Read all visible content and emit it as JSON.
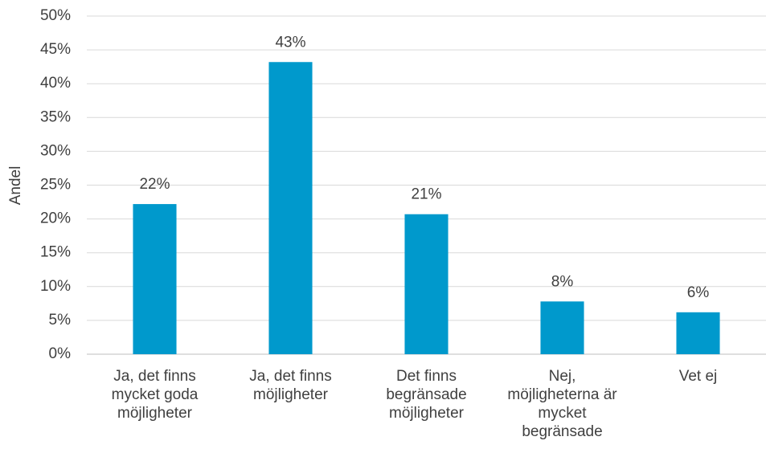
{
  "chart_data": {
    "type": "bar",
    "y_label": "Andel",
    "categories": [
      "Ja, det finns mycket goda möjligheter",
      "Ja, det finns möjligheter",
      "Det finns begränsade möjligheter",
      "Nej, möjligheterna är mycket begränsade",
      "Vet ej"
    ],
    "values": [
      22.2,
      43.2,
      20.7,
      7.8,
      6.2
    ],
    "value_labels": [
      "22%",
      "43%",
      "21%",
      "8%",
      "6%"
    ],
    "color": "#0099cc",
    "ylim": [
      0,
      50
    ],
    "yticks": [
      {
        "value": 0,
        "label": "0%"
      },
      {
        "value": 5,
        "label": "5%"
      },
      {
        "value": 10,
        "label": "10%"
      },
      {
        "value": 15,
        "label": "15%"
      },
      {
        "value": 20,
        "label": "20%"
      },
      {
        "value": 25,
        "label": "25%"
      },
      {
        "value": 30,
        "label": "30%"
      },
      {
        "value": 35,
        "label": "35%"
      },
      {
        "value": 40,
        "label": "40%"
      },
      {
        "value": 45,
        "label": "45%"
      },
      {
        "value": 50,
        "label": "50%"
      }
    ],
    "grid": true
  }
}
